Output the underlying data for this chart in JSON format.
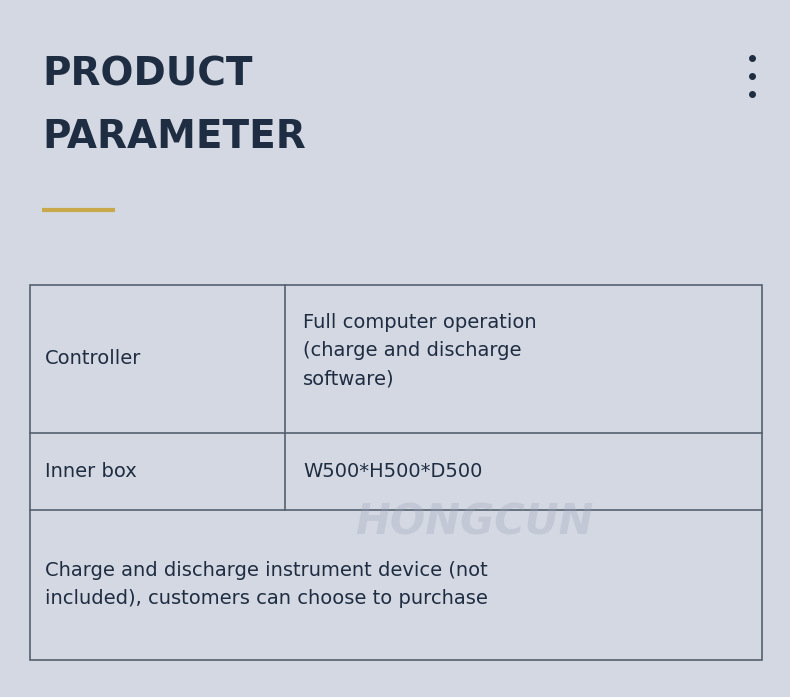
{
  "background_color": "#d4d8e2",
  "title_line1": "PRODUCT",
  "title_line2": "PARAMETER",
  "title_color": "#1e2d42",
  "title_fontsize": 28,
  "title_fontweight": "bold",
  "underline_color": "#c9a84c",
  "dots_color": "#1e2d42",
  "table_border_color": "#555f6e",
  "row1_label": "Controller",
  "row1_value": "Full computer operation\n(charge and discharge\nsoftware)",
  "row2_label": "Inner box",
  "row2_value": "W500*H500*D500",
  "row3_text": "Charge and discharge instrument device (not\nincluded), customers can choose to purchase",
  "cell_fontsize": 14,
  "watermark_text": "HONGCUN",
  "watermark_color": "#9aa4b8",
  "watermark_alpha": 0.3,
  "fig_width": 7.9,
  "fig_height": 6.97,
  "dpi": 100
}
